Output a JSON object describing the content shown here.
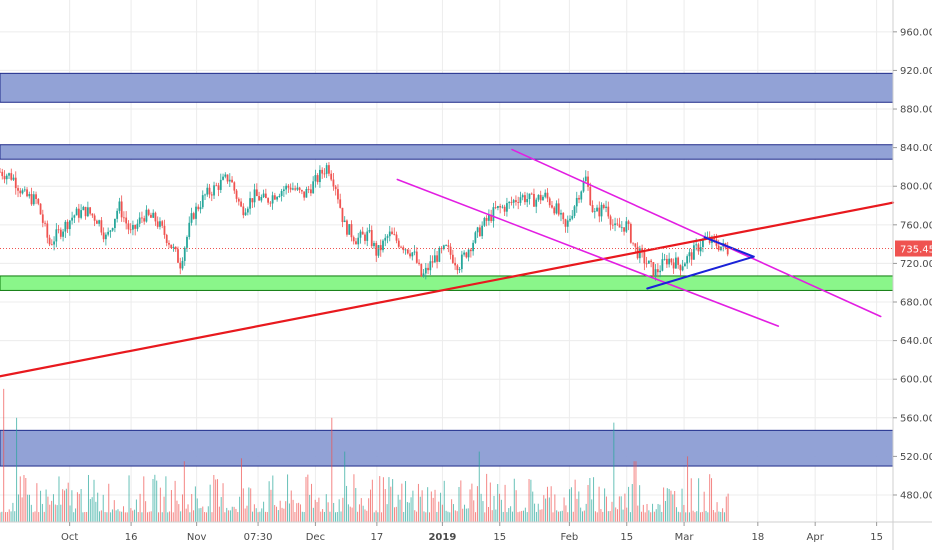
{
  "chart_data": {
    "type": "candlestick",
    "y_ticks": [
      "960.00",
      "920.00",
      "880.00",
      "840.00",
      "800.00",
      "760.00",
      "720.00",
      "680.00",
      "640.00",
      "600.00",
      "560.00",
      "520.00",
      "480.00"
    ],
    "y_tick_values": [
      960,
      920,
      880,
      840,
      800,
      760,
      720,
      680,
      640,
      600,
      560,
      520,
      480
    ],
    "ylim": [
      452,
      993
    ],
    "x_ticks": [
      {
        "label": "Oct",
        "bold": false,
        "t": 17
      },
      {
        "label": "16",
        "bold": false,
        "t": 32
      },
      {
        "label": "Nov",
        "bold": false,
        "t": 48
      },
      {
        "label": "07:30",
        "bold": false,
        "t": 63
      },
      {
        "label": "Dec",
        "bold": false,
        "t": 77
      },
      {
        "label": "17",
        "bold": false,
        "t": 92
      },
      {
        "label": "2019",
        "bold": true,
        "t": 108
      },
      {
        "label": "15",
        "bold": false,
        "t": 122
      },
      {
        "label": "Feb",
        "bold": false,
        "t": 139
      },
      {
        "label": "15",
        "bold": false,
        "t": 153
      },
      {
        "label": "Mar",
        "bold": false,
        "t": 167
      },
      {
        "label": "18",
        "bold": false,
        "t": 185
      },
      {
        "label": "Apr",
        "bold": false,
        "t": 199
      },
      {
        "label": "15",
        "bold": false,
        "t": 214
      }
    ],
    "xlim": [
      0,
      218
    ],
    "last_price": 735.45,
    "last_price_label": "735.45",
    "colors": {
      "up": "#26a69a",
      "down": "#ef5350",
      "zone_blue_fill": "#8c9dd4",
      "zone_blue_stroke": "#1e2a8a",
      "zone_green_fill": "#84f584",
      "zone_green_stroke": "#0a7a0a",
      "trend_red": "#e8191e",
      "channel_magenta": "#e21ee2",
      "triangle_blue": "#1a22d8",
      "price_line": "#ef5350",
      "axis_text": "#4a4a4a",
      "grid": "#ececec"
    },
    "zones": [
      {
        "name": "supply-zone-upper",
        "type": "blue",
        "from": 887,
        "to": 917
      },
      {
        "name": "supply-zone-mid",
        "type": "blue",
        "from": 828,
        "to": 843
      },
      {
        "name": "demand-zone",
        "type": "green",
        "from": 692,
        "to": 707
      },
      {
        "name": "volume-zone",
        "type": "blue",
        "from": 510,
        "to": 547
      }
    ],
    "lines": [
      {
        "name": "red-trendline",
        "color": "trend_red",
        "width": 2.2,
        "p1": [
          0,
          603
        ],
        "p2": [
          218,
          783
        ]
      },
      {
        "name": "channel-upper-line",
        "color": "channel_magenta",
        "width": 1.6,
        "p1": [
          125,
          838
        ],
        "p2": [
          215,
          665
        ]
      },
      {
        "name": "channel-lower-line",
        "color": "channel_magenta",
        "width": 1.6,
        "p1": [
          97,
          807
        ],
        "p2": [
          190,
          655
        ]
      },
      {
        "name": "triangle-upper-side",
        "color": "triangle_blue",
        "width": 2,
        "p1": [
          172,
          747
        ],
        "p2": [
          184,
          727
        ]
      },
      {
        "name": "triangle-lower-side",
        "color": "triangle_blue",
        "width": 2,
        "p1": [
          158,
          694
        ],
        "p2": [
          184,
          727
        ]
      }
    ],
    "close_series": [
      {
        "t": 0,
        "v": 815
      },
      {
        "t": 3,
        "v": 810
      },
      {
        "t": 6,
        "v": 790
      },
      {
        "t": 9,
        "v": 785
      },
      {
        "t": 12,
        "v": 740
      },
      {
        "t": 15,
        "v": 755
      },
      {
        "t": 18,
        "v": 770
      },
      {
        "t": 21,
        "v": 775
      },
      {
        "t": 24,
        "v": 765
      },
      {
        "t": 26,
        "v": 745
      },
      {
        "t": 29,
        "v": 780
      },
      {
        "t": 32,
        "v": 750
      },
      {
        "t": 35,
        "v": 770
      },
      {
        "t": 38,
        "v": 765
      },
      {
        "t": 41,
        "v": 745
      },
      {
        "t": 44,
        "v": 720
      },
      {
        "t": 47,
        "v": 770
      },
      {
        "t": 50,
        "v": 790
      },
      {
        "t": 53,
        "v": 800
      },
      {
        "t": 56,
        "v": 810
      },
      {
        "t": 59,
        "v": 775
      },
      {
        "t": 62,
        "v": 790
      },
      {
        "t": 65,
        "v": 785
      },
      {
        "t": 68,
        "v": 795
      },
      {
        "t": 71,
        "v": 800
      },
      {
        "t": 74,
        "v": 790
      },
      {
        "t": 77,
        "v": 805
      },
      {
        "t": 80,
        "v": 822
      },
      {
        "t": 82,
        "v": 800
      },
      {
        "t": 84,
        "v": 760
      },
      {
        "t": 87,
        "v": 745
      },
      {
        "t": 90,
        "v": 750
      },
      {
        "t": 92,
        "v": 730
      },
      {
        "t": 95,
        "v": 750
      },
      {
        "t": 98,
        "v": 740
      },
      {
        "t": 101,
        "v": 730
      },
      {
        "t": 103,
        "v": 705
      },
      {
        "t": 106,
        "v": 725
      },
      {
        "t": 109,
        "v": 735
      },
      {
        "t": 112,
        "v": 718
      },
      {
        "t": 115,
        "v": 740
      },
      {
        "t": 118,
        "v": 760
      },
      {
        "t": 121,
        "v": 775
      },
      {
        "t": 124,
        "v": 780
      },
      {
        "t": 127,
        "v": 790
      },
      {
        "t": 130,
        "v": 785
      },
      {
        "t": 133,
        "v": 790
      },
      {
        "t": 136,
        "v": 775
      },
      {
        "t": 138,
        "v": 755
      },
      {
        "t": 141,
        "v": 790
      },
      {
        "t": 143,
        "v": 808
      },
      {
        "t": 145,
        "v": 770
      },
      {
        "t": 148,
        "v": 780
      },
      {
        "t": 150,
        "v": 755
      },
      {
        "t": 153,
        "v": 760
      },
      {
        "t": 155,
        "v": 735
      },
      {
        "t": 158,
        "v": 720
      },
      {
        "t": 160,
        "v": 710
      },
      {
        "t": 163,
        "v": 725
      },
      {
        "t": 166,
        "v": 718
      },
      {
        "t": 169,
        "v": 730
      },
      {
        "t": 172,
        "v": 745
      },
      {
        "t": 175,
        "v": 740
      },
      {
        "t": 178,
        "v": 733
      }
    ],
    "volume_spikes": [
      {
        "t": 1,
        "v": 590
      },
      {
        "t": 4,
        "v": 560
      },
      {
        "t": 81,
        "v": 560
      },
      {
        "t": 150,
        "v": 555
      },
      {
        "t": 117,
        "v": 525
      },
      {
        "t": 59,
        "v": 518
      },
      {
        "t": 84,
        "v": 525
      },
      {
        "t": 45,
        "v": 515
      },
      {
        "t": 168,
        "v": 520
      },
      {
        "t": 155,
        "v": 515
      }
    ]
  }
}
